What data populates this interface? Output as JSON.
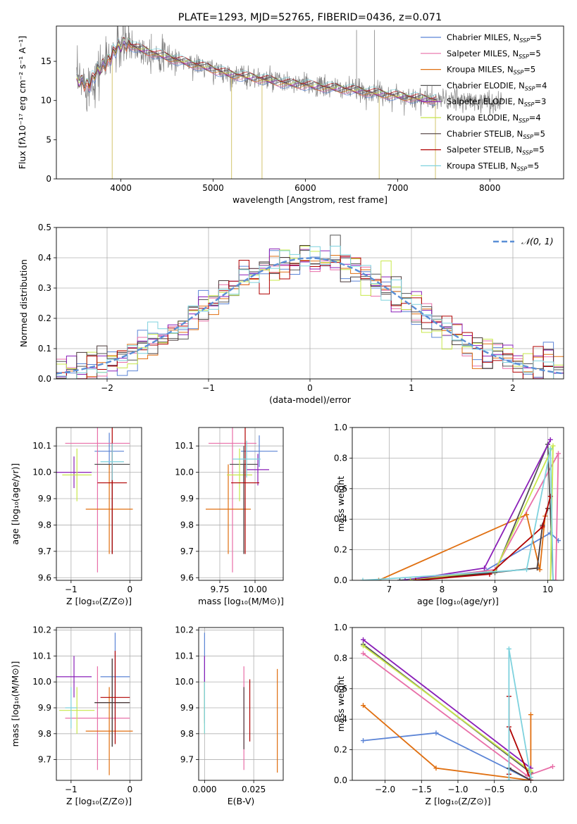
{
  "colors": {
    "Chabrier MILES": "#5b84d6",
    "Salpeter MILES": "#e86fa8",
    "Kroupa MILES": "#e06f10",
    "Chabrier ELODIE": "#555555",
    "Salpeter ELODIE": "#8a1fb8",
    "Kroupa ELODIE": "#c8e84a",
    "Chabrier STELIB": "#4a3a3a",
    "Salpeter STELIB": "#b00000",
    "Kroupa STELIB": "#7fd2de",
    "data": "#808080",
    "normal": "#5b8fd6"
  },
  "chart_data": [
    {
      "type": "line",
      "title": "PLATE=1293, MJD=52765, FIBERID=0436, z=0.071",
      "xlabel": "wavelength [Angstrom, rest frame]",
      "ylabel": "Flux [fλ10⁻¹⁷ erg cm⁻² s⁻¹ A⁻¹]",
      "xlim": [
        3300,
        8800
      ],
      "ylim": [
        0,
        19.5
      ],
      "xticks": [
        "4000",
        "5000",
        "6000",
        "7000",
        "8000"
      ],
      "yticks": [
        "0",
        "5",
        "10",
        "15"
      ],
      "legend_position": "top-right",
      "legend": [
        {
          "name": "Chabrier MILES, N",
          "sub": "SSP",
          "suffix": "=5"
        },
        {
          "name": "Salpeter MILES, N",
          "sub": "SSP",
          "suffix": "=5"
        },
        {
          "name": "Kroupa MILES, N",
          "sub": "SSP",
          "suffix": "=5"
        },
        {
          "name": "Chabrier ELODIE, N",
          "sub": "SSP",
          "suffix": "=4"
        },
        {
          "name": "Salpeter ELODIE, N",
          "sub": "SSP",
          "suffix": "=3"
        },
        {
          "name": "Kroupa ELODIE, N",
          "sub": "SSP",
          "suffix": "=4"
        },
        {
          "name": "Chabrier STELIB, N",
          "sub": "SSP",
          "suffix": "=5"
        },
        {
          "name": "Salpeter STELIB, N",
          "sub": "SSP",
          "suffix": "=5"
        },
        {
          "name": "Kroupa STELIB, N",
          "sub": "SSP",
          "suffix": "=5"
        }
      ],
      "continuum": {
        "x": [
          3550,
          3650,
          3750,
          3850,
          3950,
          4050,
          4200,
          4400,
          4600,
          4800,
          5000,
          5200,
          5400,
          5600,
          5800,
          6000,
          6200,
          6400,
          6600,
          6800,
          7000,
          7200,
          7400
        ],
        "y": [
          12.5,
          12.0,
          13.8,
          15.0,
          16.6,
          17.3,
          16.6,
          15.9,
          15.2,
          14.6,
          14.0,
          13.3,
          13.0,
          12.6,
          12.2,
          12.0,
          11.7,
          11.5,
          11.2,
          10.9,
          10.6,
          10.3,
          10.1
        ]
      },
      "data_extent": [
        3520,
        8140
      ],
      "model_extent": [
        3520,
        7420
      ]
    },
    {
      "type": "histogram",
      "xlabel": "(data-model)/error",
      "ylabel": "Normed distribution",
      "xlim": [
        -2.5,
        2.5
      ],
      "ylim": [
        0,
        0.5
      ],
      "xticks": [
        "−2",
        "−1",
        "0",
        "1",
        "2"
      ],
      "yticks": [
        "0.0",
        "0.1",
        "0.2",
        "0.3",
        "0.4",
        "0.5"
      ],
      "legend_label": "𝒩(0, 1)",
      "legend_position": "top-right",
      "bin_edges_range": [
        -2.5,
        2.5
      ],
      "bins": 50
    },
    {
      "type": "scatter",
      "xlabel": "Z [log₁₀(Z/Z⊙)]",
      "ylabel": "age  [log₁₀(age/yr)]",
      "xlim": [
        -1.25,
        0.2
      ],
      "ylim": [
        9.59,
        10.17
      ],
      "xticks": [
        "−1",
        "0"
      ],
      "yticks": [
        "9.6",
        "9.7",
        "9.8",
        "9.9",
        "10.0",
        "10.1"
      ],
      "points": [
        {
          "model": "Chabrier MILES",
          "x": -0.35,
          "xerr": 0.25,
          "y": 10.08,
          "yerr": 0.07
        },
        {
          "model": "Salpeter MILES",
          "x": -0.55,
          "xerr": 0.55,
          "y": 10.11,
          "yerr": 0.49
        },
        {
          "model": "Kroupa MILES",
          "x": -0.35,
          "xerr": 0.4,
          "y": 9.86,
          "yerr": 0.17
        },
        {
          "model": "Chabrier ELODIE",
          "x": -0.3,
          "xerr": 0.3,
          "y": 10.03,
          "yerr": 0.08
        },
        {
          "model": "Salpeter ELODIE",
          "x": -0.95,
          "xerr": 0.3,
          "y": 10.0,
          "yerr": 0.06
        },
        {
          "model": "Kroupa ELODIE",
          "x": -0.9,
          "xerr": 0.25,
          "y": 9.99,
          "yerr": 0.1
        },
        {
          "model": "Chabrier STELIB",
          "x": -0.3,
          "xerr": 0.0,
          "y": 9.86,
          "yerr": 0.17
        },
        {
          "model": "Salpeter STELIB",
          "x": -0.3,
          "xerr": 0.25,
          "y": 9.96,
          "yerr": 0.27
        },
        {
          "model": "Kroupa STELIB",
          "x": -0.3,
          "xerr": 0.2,
          "y": 10.04,
          "yerr": 0.07
        }
      ]
    },
    {
      "type": "scatter",
      "xlabel": "mass [log₁₀(M/M⊙)]",
      "ylabel": "",
      "xlim": [
        9.6,
        10.2
      ],
      "ylim": [
        9.59,
        10.17
      ],
      "xticks": [
        "9.75",
        "10.00"
      ],
      "yticks": [
        "9.6",
        "9.7",
        "9.8",
        "9.9",
        "10.0",
        "10.1"
      ],
      "points": [
        {
          "model": "Chabrier MILES",
          "x": 10.03,
          "xerr": 0.13,
          "y": 10.08,
          "yerr": 0.06
        },
        {
          "model": "Salpeter MILES",
          "x": 9.84,
          "xerr": 0.17,
          "y": 10.11,
          "yerr": 0.49
        },
        {
          "model": "Kroupa MILES",
          "x": 9.81,
          "xerr": 0.16,
          "y": 9.86,
          "yerr": 0.17
        },
        {
          "model": "Chabrier ELODIE",
          "x": 9.92,
          "xerr": 0.1,
          "y": 10.03,
          "yerr": 0.07
        },
        {
          "model": "Salpeter ELODIE",
          "x": 10.02,
          "xerr": 0.08,
          "y": 10.01,
          "yerr": 0.06
        },
        {
          "model": "Kroupa ELODIE",
          "x": 9.89,
          "xerr": 0.09,
          "y": 9.99,
          "yerr": 0.1
        },
        {
          "model": "Chabrier STELIB",
          "x": 9.92,
          "xerr": 0.0,
          "y": 9.86,
          "yerr": 0.17
        },
        {
          "model": "Salpeter STELIB",
          "x": 9.93,
          "xerr": 0.1,
          "y": 9.96,
          "yerr": 0.27
        },
        {
          "model": "Kroupa STELIB",
          "x": 9.94,
          "xerr": 0.1,
          "y": 10.05,
          "yerr": 0.07
        }
      ]
    },
    {
      "type": "line",
      "xlabel": "age  [log₁₀(age/yr)]",
      "ylabel": "mass weight",
      "xlim": [
        6.3,
        10.3
      ],
      "ylim": [
        0,
        1.0
      ],
      "xticks": [
        "7",
        "8",
        "9",
        "10"
      ],
      "yticks": [
        "0.0",
        "0.2",
        "0.4",
        "0.6",
        "0.8",
        "1.0"
      ],
      "series": [
        {
          "model": "Chabrier MILES",
          "x": [
            7.2,
            8.8,
            10.05,
            10.2
          ],
          "y": [
            0.0,
            0.06,
            0.31,
            0.26
          ]
        },
        {
          "model": "Salpeter MILES",
          "x": [
            7.4,
            9.0,
            10.2,
            10.15
          ],
          "y": [
            0.0,
            0.07,
            0.83,
            0.0
          ]
        },
        {
          "model": "Kroupa MILES",
          "x": [
            6.8,
            9.6,
            9.85,
            9.95
          ],
          "y": [
            0.0,
            0.43,
            0.07,
            0.42
          ]
        },
        {
          "model": "Chabrier ELODIE",
          "x": [
            7.2,
            9.0,
            10.0,
            10.1
          ],
          "y": [
            0.0,
            0.05,
            0.89,
            0.0
          ]
        },
        {
          "model": "Salpeter ELODIE",
          "x": [
            7.3,
            8.8,
            10.05
          ],
          "y": [
            0.0,
            0.08,
            0.92
          ]
        },
        {
          "model": "Kroupa ELODIE",
          "x": [
            7.4,
            9.0,
            10.1,
            10.05
          ],
          "y": [
            0.0,
            0.06,
            0.88,
            0.0
          ]
        },
        {
          "model": "Chabrier STELIB",
          "x": [
            7.5,
            9.8,
            9.9,
            10.0
          ],
          "y": [
            0.0,
            0.08,
            0.36,
            0.47
          ]
        },
        {
          "model": "Salpeter STELIB",
          "x": [
            7.5,
            8.9,
            9.9,
            10.05
          ],
          "y": [
            0.0,
            0.04,
            0.35,
            0.55
          ]
        },
        {
          "model": "Kroupa STELIB",
          "x": [
            6.5,
            9.6,
            10.05,
            10.1
          ],
          "y": [
            0.0,
            0.07,
            0.86,
            0.0
          ]
        }
      ]
    },
    {
      "type": "scatter",
      "xlabel": "Z [log₁₀(Z/Z⊙)]",
      "ylabel": "mass [log₁₀(M/M⊙)]",
      "xlim": [
        -1.25,
        0.2
      ],
      "ylim": [
        9.62,
        10.21
      ],
      "xticks": [
        "−1",
        "0"
      ],
      "yticks": [
        "9.7",
        "9.8",
        "9.9",
        "10.0",
        "10.1",
        "10.2"
      ],
      "points": [
        {
          "model": "Chabrier MILES",
          "x": -0.25,
          "xerr": 0.25,
          "y": 10.02,
          "yerr": 0.17
        },
        {
          "model": "Salpeter MILES",
          "x": -0.55,
          "xerr": 0.55,
          "y": 9.86,
          "yerr": 0.2
        },
        {
          "model": "Kroupa MILES",
          "x": -0.35,
          "xerr": 0.4,
          "y": 9.81,
          "yerr": 0.17
        },
        {
          "model": "Chabrier ELODIE",
          "x": -0.3,
          "xerr": 0.3,
          "y": 9.92,
          "yerr": 0.17
        },
        {
          "model": "Salpeter ELODIE",
          "x": -0.95,
          "xerr": 0.3,
          "y": 10.02,
          "yerr": 0.08
        },
        {
          "model": "Kroupa ELODIE",
          "x": -0.9,
          "xerr": 0.3,
          "y": 9.89,
          "yerr": 0.09
        },
        {
          "model": "Chabrier STELIB",
          "x": -0.3,
          "xerr": 0.3,
          "y": 9.92,
          "yerr": 0.17
        },
        {
          "model": "Salpeter STELIB",
          "x": -0.25,
          "xerr": 0.25,
          "y": 9.94,
          "yerr": 0.18
        },
        {
          "model": "Kroupa STELIB",
          "x": -1.0,
          "xerr": 0.1,
          "y": 9.9,
          "yerr": 0.08
        }
      ]
    },
    {
      "type": "scatter",
      "xlabel": "E(B-V)",
      "ylabel": "",
      "xlim": [
        -0.003,
        0.04
      ],
      "ylim": [
        9.62,
        10.21
      ],
      "xticks": [
        "0.000",
        "0.025"
      ],
      "yticks": [
        "9.7",
        "9.8",
        "9.9",
        "10.0",
        "10.1",
        "10.2"
      ],
      "points": [
        {
          "model": "Chabrier MILES",
          "x": 0.0,
          "y": 10.02,
          "yerr": 0.17
        },
        {
          "model": "Salpeter MILES",
          "x": 0.02,
          "y": 9.86,
          "yerr": 0.2
        },
        {
          "model": "Kroupa MILES",
          "x": 0.037,
          "y": 9.85,
          "yerr": 0.2
        },
        {
          "model": "Chabrier ELODIE",
          "x": 0.0,
          "y": 9.92,
          "yerr": 0.08
        },
        {
          "model": "Salpeter ELODIE",
          "x": 0.0,
          "y": 10.05,
          "yerr": 0.05
        },
        {
          "model": "Kroupa ELODIE",
          "x": 0.0,
          "y": 9.9,
          "yerr": 0.1
        },
        {
          "model": "Chabrier STELIB",
          "x": 0.02,
          "y": 9.86,
          "yerr": 0.12
        },
        {
          "model": "Salpeter STELIB",
          "x": 0.023,
          "y": 9.89,
          "yerr": 0.12
        },
        {
          "model": "Kroupa STELIB",
          "x": 0.0,
          "y": 9.9,
          "yerr": 0.1
        }
      ]
    },
    {
      "type": "line",
      "xlabel": "Z [log₁₀(Z/Z⊙)]",
      "ylabel": "mass weight",
      "xlim": [
        -2.45,
        0.45
      ],
      "ylim": [
        0,
        1.0
      ],
      "xticks": [
        "−2.0",
        "−1.5",
        "−1.0",
        "−0.5",
        "0.0"
      ],
      "yticks": [
        "0.0",
        "0.2",
        "0.4",
        "0.6",
        "0.8",
        "1.0"
      ],
      "series": [
        {
          "model": "Chabrier MILES",
          "x": [
            -2.3,
            -1.3,
            0.0
          ],
          "y": [
            0.26,
            0.31,
            0.0
          ]
        },
        {
          "model": "Salpeter MILES",
          "x": [
            -2.3,
            -0.05,
            0.3
          ],
          "y": [
            0.83,
            0.03,
            0.09
          ]
        },
        {
          "model": "Kroupa MILES",
          "x": [
            -2.3,
            -1.3,
            0.0,
            0.0
          ],
          "y": [
            0.49,
            0.08,
            0.0,
            0.43
          ]
        },
        {
          "model": "Chabrier ELODIE",
          "x": [
            -2.3,
            0.0
          ],
          "y": [
            0.89,
            0.05
          ]
        },
        {
          "model": "Salpeter ELODIE",
          "x": [
            -2.3,
            0.0
          ],
          "y": [
            0.92,
            0.08
          ]
        },
        {
          "model": "Kroupa ELODIE",
          "x": [
            -2.3,
            0.0
          ],
          "y": [
            0.88,
            0.06
          ]
        },
        {
          "model": "Chabrier STELIB",
          "x": [
            -0.3,
            0.0
          ],
          "y": [
            0.08,
            0.0
          ]
        },
        {
          "model": "Salpeter STELIB",
          "x": [
            -0.3,
            -0.3,
            -0.3,
            0.0
          ],
          "y": [
            0.04,
            0.55,
            0.35,
            0.0
          ]
        },
        {
          "model": "Kroupa STELIB",
          "x": [
            -0.3,
            -0.3,
            0.0
          ],
          "y": [
            0.0,
            0.86,
            0.02
          ]
        }
      ]
    }
  ]
}
